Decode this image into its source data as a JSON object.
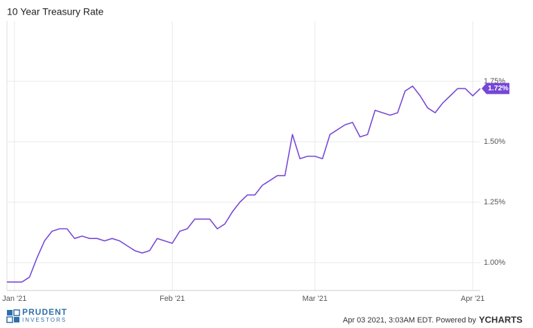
{
  "chart_data": {
    "type": "line",
    "title": "10 Year Treasury Rate",
    "categories": [
      null,
      "Jan '21",
      null,
      null,
      null,
      null,
      null,
      null,
      null,
      null,
      null,
      null,
      null,
      null,
      null,
      null,
      null,
      null,
      null,
      null,
      null,
      null,
      "Feb '21",
      null,
      null,
      null,
      null,
      null,
      null,
      null,
      null,
      null,
      null,
      null,
      null,
      null,
      null,
      null,
      null,
      null,
      null,
      "Mar '21",
      null,
      null,
      null,
      null,
      null,
      null,
      null,
      null,
      null,
      null,
      null,
      null,
      null,
      null,
      null,
      null,
      null,
      null,
      null,
      null,
      "Apr '21",
      null
    ],
    "series": [
      {
        "name": "10 Year Treasury Rate",
        "color": "#7547d6",
        "values": [
          0.92,
          0.92,
          0.92,
          0.94,
          1.02,
          1.09,
          1.13,
          1.14,
          1.14,
          1.1,
          1.11,
          1.1,
          1.1,
          1.09,
          1.1,
          1.09,
          1.07,
          1.05,
          1.04,
          1.05,
          1.1,
          1.09,
          1.08,
          1.13,
          1.14,
          1.18,
          1.18,
          1.18,
          1.14,
          1.16,
          1.21,
          1.25,
          1.28,
          1.28,
          1.32,
          1.34,
          1.36,
          1.36,
          1.53,
          1.43,
          1.44,
          1.44,
          1.43,
          1.53,
          1.55,
          1.57,
          1.58,
          1.52,
          1.53,
          1.63,
          1.62,
          1.61,
          1.62,
          1.71,
          1.73,
          1.69,
          1.64,
          1.62,
          1.66,
          1.69,
          1.72,
          1.72,
          1.69,
          1.72
        ],
        "value_labels": [
          null,
          null,
          null,
          null,
          null,
          null,
          null,
          null,
          null,
          null,
          null,
          null,
          null,
          null,
          null,
          null,
          null,
          null,
          null,
          null,
          null,
          null,
          null,
          null,
          null,
          null,
          null,
          null,
          null,
          null,
          null,
          null,
          null,
          null,
          null,
          null,
          null,
          null,
          null,
          null,
          null,
          null,
          null,
          null,
          null,
          null,
          null,
          null,
          null,
          null,
          null,
          null,
          null,
          null,
          null,
          null,
          null,
          null,
          null,
          null,
          null,
          null,
          null,
          "1.72%"
        ]
      }
    ],
    "ylim": [
      0.885,
      2.0
    ],
    "yticks": [
      {
        "value": 1.0,
        "label": "1.00%"
      },
      {
        "value": 1.25,
        "label": "1.25%"
      },
      {
        "value": 1.5,
        "label": "1.50%"
      },
      {
        "value": 1.75,
        "label": "1.75%"
      }
    ],
    "grid": true
  },
  "footer": {
    "timestamp": "Apr 03 2021, 3:03AM EDT. Powered by",
    "brand": "YCHARTS",
    "logo_top": "PRUDENT",
    "logo_bottom": "INVESTORS"
  }
}
